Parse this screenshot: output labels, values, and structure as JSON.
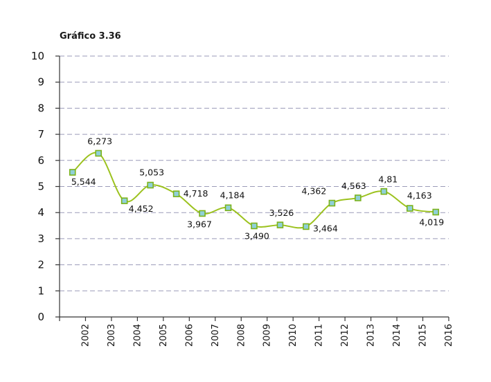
{
  "chart_data": {
    "type": "line",
    "title": "Gráfico 3.36",
    "xlabel": "",
    "ylabel": "",
    "categories": [
      "2002",
      "2003",
      "2004",
      "2005",
      "2006",
      "2007",
      "2008",
      "2009",
      "2010",
      "2011",
      "2012",
      "2013",
      "2014",
      "2015",
      "2016"
    ],
    "series": [
      {
        "values": [
          5.544,
          6.273,
          4.452,
          5.053,
          4.718,
          3.967,
          4.184,
          3.49,
          3.526,
          3.464,
          4.362,
          4.563,
          4.81,
          4.163,
          4.019
        ],
        "labels": [
          "5,544",
          "6,273",
          "4,452",
          "5,053",
          "4,718",
          "3,967",
          "4,184",
          "3,490",
          "3,526",
          "3,464",
          "4,362",
          "4,563",
          "4,81",
          "4,163",
          "4,019"
        ]
      }
    ],
    "ylim": [
      0,
      10
    ],
    "yticks": [
      "0",
      "1",
      "2",
      "3",
      "4",
      "5",
      "6",
      "7",
      "8",
      "9",
      "10"
    ],
    "grid": true,
    "colors": {
      "line": "#9cc21e",
      "marker_fill": "#8fd0d8",
      "grid": "#9a9ab8"
    }
  }
}
